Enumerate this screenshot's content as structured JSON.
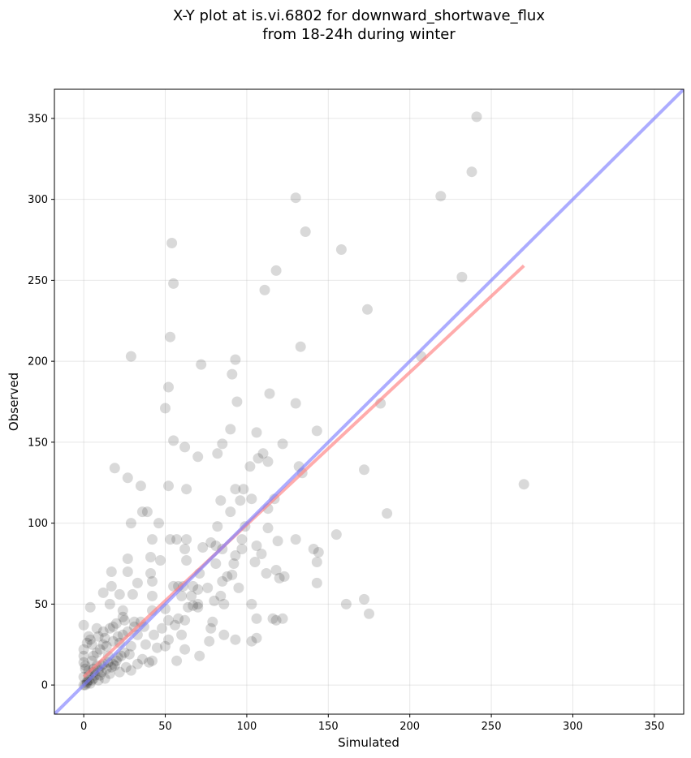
{
  "chart_data": {
    "type": "scatter",
    "title_lines": [
      "X-Y plot at is.vi.6802 for downward_shortwave_flux",
      "from 18-24h during winter"
    ],
    "xlabel": "Simulated",
    "ylabel": "Observed",
    "xlim": [
      -18,
      368
    ],
    "ylim": [
      -18,
      368
    ],
    "xticks": [
      0,
      50,
      100,
      150,
      200,
      250,
      300,
      350
    ],
    "yticks": [
      0,
      50,
      100,
      150,
      200,
      250,
      300,
      350
    ],
    "xtick_labels": [
      "0",
      "50",
      "100",
      "150",
      "200",
      "250",
      "300",
      "350"
    ],
    "ytick_labels": [
      "0",
      "50",
      "100",
      "150",
      "200",
      "250",
      "300",
      "350"
    ],
    "grid": true,
    "point_color": "#000000",
    "points": [
      [
        241,
        351
      ],
      [
        238,
        317
      ],
      [
        219,
        302
      ],
      [
        130,
        301
      ],
      [
        136,
        280
      ],
      [
        158,
        269
      ],
      [
        54,
        273
      ],
      [
        232,
        252
      ],
      [
        118,
        256
      ],
      [
        55,
        248
      ],
      [
        111,
        244
      ],
      [
        174,
        232
      ],
      [
        53,
        215
      ],
      [
        133,
        209
      ],
      [
        29,
        203
      ],
      [
        93,
        201
      ],
      [
        207,
        203
      ],
      [
        72,
        198
      ],
      [
        91,
        192
      ],
      [
        52,
        184
      ],
      [
        114,
        180
      ],
      [
        94,
        175
      ],
      [
        182,
        174
      ],
      [
        130,
        174
      ],
      [
        50,
        171
      ],
      [
        90,
        158
      ],
      [
        143,
        157
      ],
      [
        106,
        156
      ],
      [
        122,
        149
      ],
      [
        85,
        149
      ],
      [
        55,
        151
      ],
      [
        62,
        147
      ],
      [
        82,
        143
      ],
      [
        110,
        143
      ],
      [
        70,
        141
      ],
      [
        107,
        140
      ],
      [
        113,
        138
      ],
      [
        19,
        134
      ],
      [
        132,
        135
      ],
      [
        134,
        131
      ],
      [
        172,
        133
      ],
      [
        27,
        128
      ],
      [
        102,
        135
      ],
      [
        35,
        123
      ],
      [
        52,
        123
      ],
      [
        63,
        121
      ],
      [
        93,
        121
      ],
      [
        98,
        121
      ],
      [
        103,
        115
      ],
      [
        84,
        114
      ],
      [
        96,
        114
      ],
      [
        117,
        115
      ],
      [
        270,
        124
      ],
      [
        36,
        107
      ],
      [
        90,
        107
      ],
      [
        113,
        109
      ],
      [
        186,
        106
      ],
      [
        39,
        107
      ],
      [
        29,
        100
      ],
      [
        46,
        100
      ],
      [
        82,
        98
      ],
      [
        99,
        98
      ],
      [
        113,
        97
      ],
      [
        155,
        93
      ],
      [
        53,
        90
      ],
      [
        42,
        90
      ],
      [
        57,
        90
      ],
      [
        63,
        90
      ],
      [
        97,
        90
      ],
      [
        119,
        89
      ],
      [
        130,
        90
      ],
      [
        78,
        88
      ],
      [
        81,
        86
      ],
      [
        62,
        84
      ],
      [
        106,
        86
      ],
      [
        73,
        85
      ],
      [
        85,
        84
      ],
      [
        97,
        84
      ],
      [
        141,
        84
      ],
      [
        144,
        82
      ],
      [
        109,
        81
      ],
      [
        93,
        80
      ],
      [
        41,
        79
      ],
      [
        47,
        77
      ],
      [
        27,
        78
      ],
      [
        63,
        77
      ],
      [
        105,
        76
      ],
      [
        143,
        76
      ],
      [
        92,
        75
      ],
      [
        81,
        75
      ],
      [
        118,
        71
      ],
      [
        17,
        70
      ],
      [
        27,
        70
      ],
      [
        41,
        69
      ],
      [
        88,
        67
      ],
      [
        91,
        68
      ],
      [
        71,
        69
      ],
      [
        112,
        69
      ],
      [
        120,
        66
      ],
      [
        123,
        67
      ],
      [
        33,
        63
      ],
      [
        42,
        64
      ],
      [
        85,
        64
      ],
      [
        143,
        63
      ],
      [
        58,
        61
      ],
      [
        17,
        61
      ],
      [
        55,
        61
      ],
      [
        61,
        61
      ],
      [
        67,
        61
      ],
      [
        76,
        60
      ],
      [
        95,
        60
      ],
      [
        70,
        59
      ],
      [
        12,
        57
      ],
      [
        30,
        56
      ],
      [
        42,
        55
      ],
      [
        22,
        56
      ],
      [
        60,
        55
      ],
      [
        66,
        55
      ],
      [
        84,
        55
      ],
      [
        80,
        52
      ],
      [
        70,
        50
      ],
      [
        86,
        50
      ],
      [
        103,
        50
      ],
      [
        161,
        50
      ],
      [
        172,
        53
      ],
      [
        4,
        48
      ],
      [
        16,
        50
      ],
      [
        24,
        46
      ],
      [
        42,
        46
      ],
      [
        50,
        47
      ],
      [
        64,
        48
      ],
      [
        67,
        49
      ],
      [
        70,
        48
      ],
      [
        175,
        44
      ],
      [
        52,
        40
      ],
      [
        58,
        41
      ],
      [
        62,
        40
      ],
      [
        79,
        39
      ],
      [
        106,
        41
      ],
      [
        116,
        41
      ],
      [
        118,
        40
      ],
      [
        122,
        41
      ],
      [
        0,
        37
      ],
      [
        8,
        35
      ],
      [
        18,
        36
      ],
      [
        25,
        40
      ],
      [
        31,
        39
      ],
      [
        37,
        36
      ],
      [
        48,
        35
      ],
      [
        56,
        37
      ],
      [
        78,
        35
      ],
      [
        3,
        30
      ],
      [
        13,
        29
      ],
      [
        24,
        31
      ],
      [
        33,
        31
      ],
      [
        43,
        31
      ],
      [
        52,
        28
      ],
      [
        60,
        31
      ],
      [
        77,
        27
      ],
      [
        86,
        31
      ],
      [
        93,
        28
      ],
      [
        103,
        27
      ],
      [
        106,
        29
      ],
      [
        5,
        25
      ],
      [
        14,
        24
      ],
      [
        22,
        26
      ],
      [
        29,
        24
      ],
      [
        38,
        25
      ],
      [
        45,
        23
      ],
      [
        50,
        24
      ],
      [
        62,
        22
      ],
      [
        71,
        18
      ],
      [
        57,
        15
      ],
      [
        0,
        22
      ],
      [
        8,
        20
      ],
      [
        15,
        18
      ],
      [
        21,
        17
      ],
      [
        28,
        19
      ],
      [
        36,
        16
      ],
      [
        42,
        15
      ],
      [
        5,
        15
      ],
      [
        12,
        13
      ],
      [
        19,
        12
      ],
      [
        26,
        11
      ],
      [
        33,
        13
      ],
      [
        40,
        14
      ],
      [
        1,
        10
      ],
      [
        6,
        10
      ],
      [
        11,
        8
      ],
      [
        16,
        7
      ],
      [
        22,
        8
      ],
      [
        29,
        9
      ],
      [
        0,
        5
      ],
      [
        3,
        6
      ],
      [
        6,
        4
      ],
      [
        9,
        3
      ],
      [
        13,
        4
      ],
      [
        2,
        2
      ],
      [
        4,
        1
      ],
      [
        0,
        0
      ],
      [
        1,
        0
      ],
      [
        2,
        1
      ],
      [
        3,
        3
      ],
      [
        5,
        3
      ],
      [
        7,
        6
      ],
      [
        10,
        6
      ],
      [
        14,
        10
      ],
      [
        17,
        11
      ],
      [
        20,
        15
      ],
      [
        23,
        18
      ],
      [
        25,
        20
      ],
      [
        8,
        12
      ],
      [
        3,
        9
      ],
      [
        1,
        12
      ],
      [
        0,
        14
      ],
      [
        6,
        18
      ],
      [
        10,
        22
      ],
      [
        12,
        25
      ],
      [
        18,
        27
      ],
      [
        21,
        30
      ],
      [
        27,
        33
      ],
      [
        31,
        36
      ],
      [
        35,
        39
      ],
      [
        0,
        18
      ],
      [
        2,
        26
      ],
      [
        4,
        28
      ],
      [
        9,
        30
      ],
      [
        12,
        33
      ],
      [
        16,
        35
      ],
      [
        20,
        38
      ],
      [
        24,
        42
      ],
      [
        6,
        8
      ],
      [
        9,
        9
      ],
      [
        11,
        12
      ],
      [
        15,
        14
      ],
      [
        18,
        13
      ]
    ],
    "lines": [
      {
        "color": "#ff7f7f",
        "x": [
          0,
          270
        ],
        "y": [
          5,
          259
        ]
      },
      {
        "color": "#7f7fff",
        "x": [
          -18,
          368
        ],
        "y": [
          -18,
          368
        ]
      }
    ]
  }
}
